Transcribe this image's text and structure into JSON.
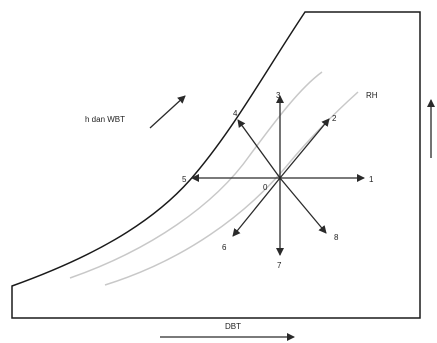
{
  "labels": {
    "enthalpy": "h dan WBT",
    "rh": "RH",
    "dbt": "DBT",
    "origin": "0"
  },
  "directions": [
    {
      "id": "1",
      "label": "1"
    },
    {
      "id": "2",
      "label": "2"
    },
    {
      "id": "3",
      "label": "3"
    },
    {
      "id": "4",
      "label": "4"
    },
    {
      "id": "5",
      "label": "5"
    },
    {
      "id": "6",
      "label": "6"
    },
    {
      "id": "7",
      "label": "7"
    },
    {
      "id": "8",
      "label": "8"
    }
  ],
  "colors": {
    "outline": "#1a1a1a",
    "arrows": "#2a2a2a",
    "rh_curves": "#c8c8c8"
  }
}
